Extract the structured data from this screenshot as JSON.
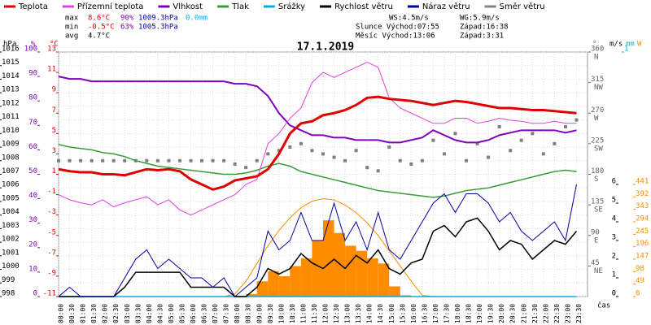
{
  "chart_data": {
    "type": "line",
    "title": "17.1.2019",
    "categories": [
      "00:00",
      "00:30",
      "01:00",
      "01:30",
      "02:00",
      "02:30",
      "03:00",
      "03:30",
      "04:00",
      "04:30",
      "05:00",
      "05:30",
      "06:00",
      "06:30",
      "07:00",
      "07:30",
      "08:00",
      "08:30",
      "09:00",
      "09:30",
      "10:00",
      "10:30",
      "11:00",
      "11:30",
      "12:00",
      "12:30",
      "13:00",
      "13:30",
      "14:00",
      "14:30",
      "15:00",
      "15:30",
      "16:00",
      "16:30",
      "17:00",
      "17:30",
      "18:00",
      "18:30",
      "19:00",
      "19:30",
      "20:00",
      "20:30",
      "21:00",
      "21:30",
      "22:00",
      "22:30",
      "23:00",
      "23:30"
    ],
    "x_label": "čas",
    "axes": {
      "press": {
        "unit": "hPa",
        "color": "#000000",
        "lim": [
          998,
          1016
        ],
        "ticks": [
          998,
          999,
          1000,
          1001,
          1002,
          1003,
          1004,
          1005,
          1006,
          1007,
          1008,
          1009,
          1010,
          1011,
          1012,
          1013,
          1014,
          1015,
          1016
        ]
      },
      "hum": {
        "unit": "%",
        "color": "#8000c0",
        "lim": [
          0,
          100
        ],
        "ticks": [
          0,
          10,
          20,
          30,
          40,
          50,
          60,
          70,
          80,
          90,
          100
        ]
      },
      "temp": {
        "unit": "°C",
        "color": "#e00000",
        "lim": [
          -11,
          13
        ],
        "ticks": [
          -11,
          -9,
          -7,
          -5,
          -3,
          -1,
          1,
          3,
          5,
          7,
          9,
          11,
          13
        ]
      },
      "dir": {
        "unit": "°",
        "color": "#606060",
        "lim": [
          0,
          360
        ],
        "ticks": [
          45,
          90,
          135,
          180,
          225,
          270,
          315,
          360
        ],
        "tick_words": [
          "NE",
          "E",
          "SE",
          "S",
          "SW",
          "W",
          "NW",
          "N"
        ]
      },
      "wind": {
        "unit": "m/s",
        "color": "#000000",
        "lim": [
          0,
          6
        ],
        "ticks": [
          0,
          1,
          2,
          3,
          4,
          5,
          6
        ]
      },
      "mm": {
        "unit": "mm",
        "color": "#00b0e0",
        "lim": [
          0,
          1
        ],
        "ticks": [
          1
        ]
      },
      "solar": {
        "unit": "W",
        "color": "#ff8c00",
        "lim": [
          0,
          441
        ],
        "ticks": [
          0,
          49,
          98,
          147,
          196,
          245,
          294,
          343,
          392,
          441
        ]
      }
    },
    "series": [
      {
        "name": "Teplota",
        "color": "#e00000",
        "axis": "temp",
        "style": "line",
        "width": 3,
        "values": [
          1.5,
          1.3,
          1.2,
          1.2,
          1.0,
          1.0,
          0.9,
          1.2,
          1.5,
          1.4,
          1.5,
          1.3,
          0.5,
          0.0,
          -0.5,
          -0.2,
          0.4,
          0.6,
          0.8,
          1.5,
          3.0,
          5.0,
          6.0,
          6.2,
          6.8,
          7.0,
          7.3,
          7.8,
          8.5,
          8.6,
          8.4,
          8.3,
          8.2,
          8.0,
          7.8,
          8.0,
          8.2,
          8.1,
          7.9,
          7.7,
          7.5,
          7.5,
          7.4,
          7.3,
          7.3,
          7.2,
          7.1,
          7.0
        ]
      },
      {
        "name": "Přízemní teplota",
        "color": "#e040e0",
        "axis": "temp",
        "style": "line",
        "width": 1,
        "values": [
          -1.0,
          -1.5,
          -1.8,
          -2.0,
          -1.5,
          -2.2,
          -1.8,
          -1.5,
          -1.2,
          -2.0,
          -1.5,
          -2.5,
          -3.0,
          -2.5,
          -2.0,
          -1.5,
          -1.0,
          0.0,
          0.5,
          4.0,
          5.0,
          6.5,
          7.5,
          10.0,
          11.0,
          10.5,
          11.0,
          11.5,
          12.0,
          11.5,
          8.5,
          7.5,
          7.0,
          6.5,
          6.0,
          6.0,
          6.5,
          6.5,
          6.0,
          6.2,
          6.5,
          6.3,
          6.2,
          6.0,
          6.0,
          6.2,
          6.0,
          6.0
        ]
      },
      {
        "name": "Vlhkost",
        "color": "#8000c0",
        "axis": "hum",
        "style": "line",
        "width": 2,
        "values": [
          90,
          89,
          89,
          88,
          88,
          88,
          88,
          88,
          88,
          88,
          88,
          88,
          88,
          88,
          88,
          88,
          87,
          87,
          86,
          82,
          75,
          70,
          68,
          66,
          66,
          65,
          65,
          64,
          64,
          64,
          63,
          63,
          64,
          65,
          68,
          66,
          64,
          63,
          63,
          64,
          66,
          67,
          68,
          68,
          68,
          68,
          67,
          68
        ]
      },
      {
        "name": "Tlak",
        "color": "#3a9a3a",
        "axis": "press",
        "style": "line",
        "width": 1.5,
        "values": [
          1009.2,
          1009.0,
          1008.9,
          1008.8,
          1008.6,
          1008.5,
          1008.3,
          1008.0,
          1007.8,
          1007.6,
          1007.5,
          1007.4,
          1007.3,
          1007.2,
          1007.1,
          1007.0,
          1007.0,
          1007.1,
          1007.3,
          1007.6,
          1007.8,
          1007.6,
          1007.2,
          1007.0,
          1006.8,
          1006.6,
          1006.4,
          1006.2,
          1006.0,
          1005.8,
          1005.7,
          1005.6,
          1005.5,
          1005.4,
          1005.3,
          1005.4,
          1005.6,
          1005.8,
          1005.9,
          1006.0,
          1006.2,
          1006.4,
          1006.6,
          1006.8,
          1007.0,
          1007.2,
          1007.3,
          1007.2
        ]
      },
      {
        "name": "Srážky",
        "color": "#00b0e0",
        "axis": "mm",
        "style": "line",
        "width": 1.5,
        "values": [
          0,
          0,
          0,
          0,
          0,
          0,
          0,
          0,
          0,
          0,
          0,
          0,
          0,
          0,
          0,
          0,
          0,
          0,
          0,
          0,
          0,
          0,
          0,
          0,
          0,
          0,
          0,
          0,
          0,
          0,
          0,
          0,
          0,
          0,
          0,
          0,
          0,
          0,
          0,
          0,
          0,
          0,
          0,
          0,
          0,
          0,
          0,
          0
        ]
      },
      {
        "name": "Rychlost větru",
        "color": "#000000",
        "axis": "wind",
        "style": "line",
        "width": 1.5,
        "values": [
          0,
          0,
          0,
          0,
          0,
          0,
          0.5,
          1.3,
          1.3,
          1.3,
          1.3,
          1.3,
          0.5,
          0.5,
          0.5,
          0.5,
          0,
          0,
          0.5,
          1.5,
          1.2,
          1.5,
          2.3,
          1.8,
          1.5,
          2.0,
          1.5,
          2.2,
          1.8,
          2.5,
          1.5,
          1.2,
          1.8,
          2.0,
          3.5,
          3.8,
          3.2,
          4.0,
          4.2,
          3.5,
          2.5,
          3.0,
          2.8,
          2.0,
          2.5,
          3.0,
          2.8,
          3.5
        ]
      },
      {
        "name": "Náraz větru",
        "color": "#0000a0",
        "axis": "wind",
        "style": "line",
        "width": 1,
        "values": [
          0,
          0.5,
          0,
          0,
          0,
          0,
          1.0,
          2.0,
          2.5,
          1.5,
          2.0,
          1.5,
          1.0,
          1.0,
          0.5,
          1.0,
          0,
          0.5,
          1.0,
          3.5,
          2.5,
          3.0,
          4.5,
          3.0,
          3.0,
          5.0,
          3.0,
          4.0,
          2.5,
          4.5,
          2.5,
          2.0,
          3.0,
          4.0,
          5.0,
          5.5,
          4.5,
          5.5,
          5.5,
          5.0,
          4.0,
          4.5,
          3.5,
          3.0,
          3.5,
          4.0,
          3.0,
          6.0
        ]
      },
      {
        "name": "Směr větru",
        "color": "#808080",
        "axis": "dir",
        "style": "points",
        "width": 1,
        "values": [
          200,
          200,
          200,
          200,
          200,
          200,
          200,
          200,
          200,
          200,
          200,
          200,
          200,
          200,
          200,
          200,
          195,
          190,
          200,
          210,
          215,
          220,
          225,
          215,
          210,
          205,
          200,
          215,
          190,
          185,
          220,
          200,
          195,
          200,
          230,
          210,
          240,
          200,
          225,
          205,
          250,
          215,
          230,
          240,
          210,
          225,
          250,
          260
        ]
      },
      {
        "color": "#ff8c00",
        "axis": "solar",
        "style": "area",
        "width": 1,
        "values": [
          0,
          0,
          0,
          0,
          0,
          0,
          0,
          0,
          0,
          0,
          0,
          0,
          0,
          0,
          0,
          0,
          0,
          10,
          60,
          100,
          80,
          120,
          150,
          220,
          300,
          250,
          200,
          180,
          150,
          130,
          40,
          5,
          0,
          0,
          0,
          0,
          0,
          0,
          0,
          0,
          0,
          0,
          0,
          0,
          0,
          0,
          0,
          0
        ]
      },
      {
        "color": "#ff8c00",
        "axis": "solar",
        "style": "line",
        "width": 1,
        "values": [
          0,
          0,
          0,
          0,
          0,
          0,
          0,
          0,
          0,
          0,
          0,
          0,
          0,
          0,
          0,
          0,
          10,
          60,
          130,
          200,
          260,
          310,
          350,
          375,
          385,
          380,
          360,
          330,
          290,
          240,
          180,
          120,
          60,
          5,
          0,
          0,
          0,
          0,
          0,
          0,
          0,
          0,
          0,
          0,
          0,
          0,
          0,
          0
        ]
      }
    ],
    "stats": {
      "max": {
        "label": "max",
        "temp": "8.6°C",
        "hum": "90%",
        "press": "1009.3hPa",
        "rain": "0.0mm"
      },
      "min": {
        "label": "min",
        "temp": "-0.5°C",
        "hum": "63%",
        "press": "1005.3hPa"
      },
      "avg": {
        "label": "avg",
        "temp": "4.7°C"
      },
      "ws": "WS:4.5m/s",
      "wg": "WG:5.9m/s",
      "sun_rise": "Slunce Východ:07:55",
      "sun_set": "Západ:16:38",
      "moon_rise": "Měsíc Východ:13:06",
      "moon_set": "Západ:3:31"
    }
  }
}
